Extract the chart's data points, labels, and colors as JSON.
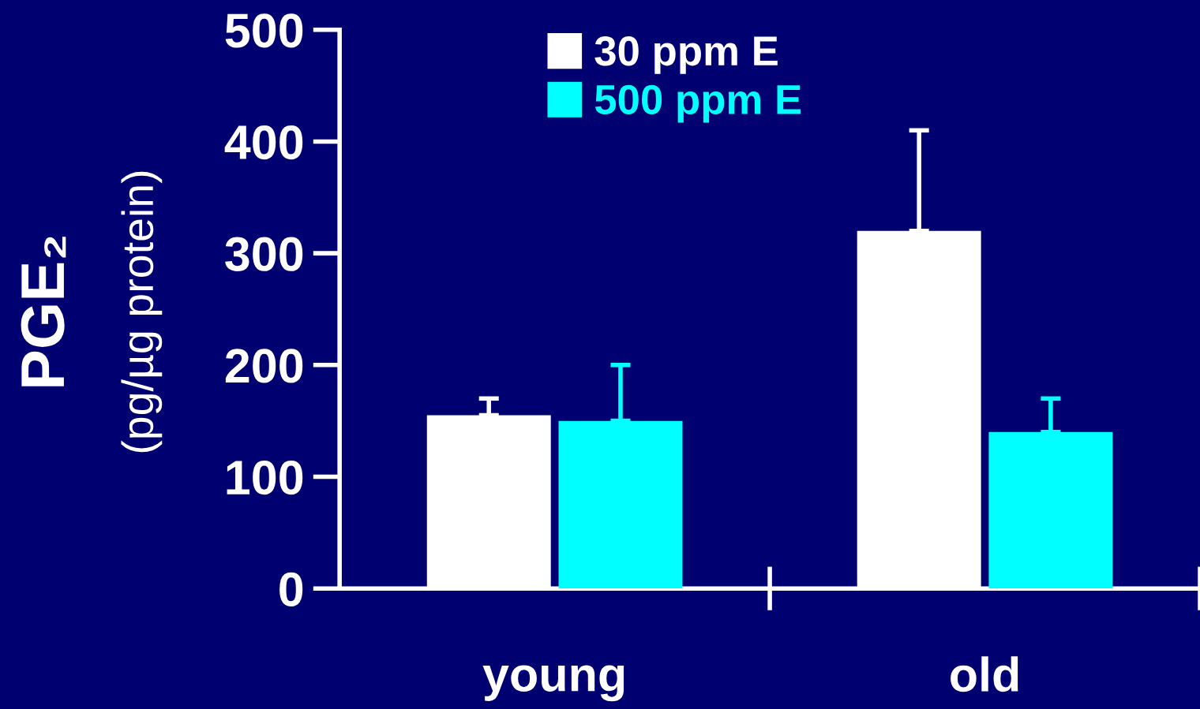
{
  "chart_data": {
    "type": "bar",
    "ylabel": "PGE₂\n(pg/µg protein)",
    "categories": [
      "young",
      "old"
    ],
    "series": [
      {
        "name": "30 ppm E",
        "color": "#ffffff",
        "values": [
          155,
          320
        ],
        "errors": [
          [
            155,
            170
          ],
          [
            320,
            410
          ]
        ]
      },
      {
        "name": "500 ppm E",
        "color": "#00ffff",
        "values": [
          150,
          140
        ],
        "errors": [
          [
            150,
            200
          ],
          [
            140,
            170
          ]
        ]
      }
    ],
    "ylim": [
      0,
      500
    ],
    "yticks": [
      0,
      100,
      200,
      300,
      400,
      500
    ],
    "grid": false,
    "legend": "top"
  }
}
